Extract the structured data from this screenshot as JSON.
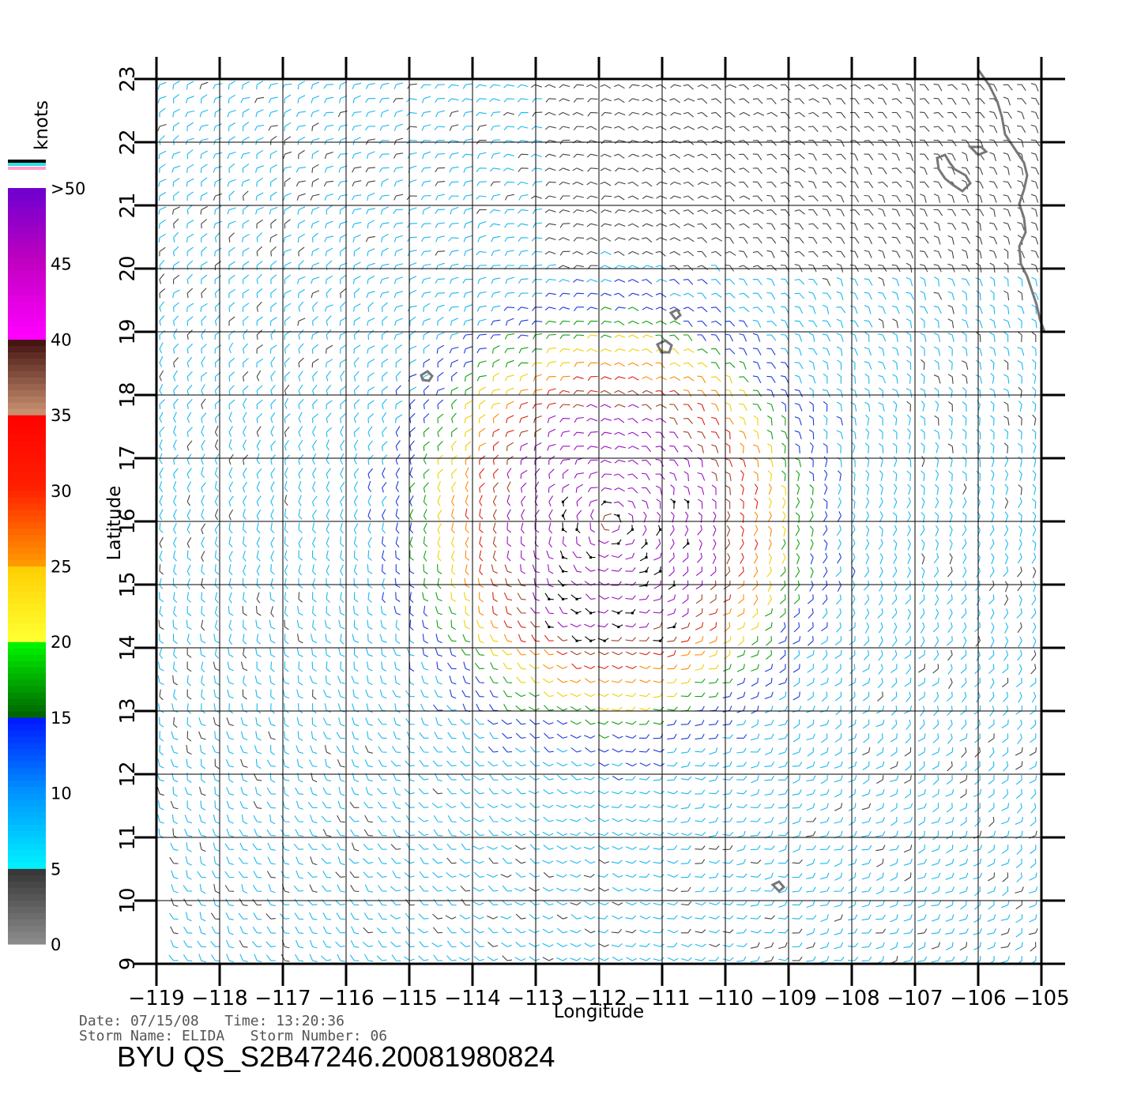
{
  "chart_data": {
    "type": "map",
    "product": "QuikSCAT wind barbs",
    "xlabel": "Longitude",
    "ylabel": "Latitude",
    "xlim": [
      -119,
      -105
    ],
    "ylim": [
      9,
      23
    ],
    "x_ticks": [
      "−119",
      "−118",
      "−117",
      "−116",
      "−115",
      "−114",
      "−113",
      "−112",
      "−111",
      "−110",
      "−109",
      "−108",
      "−107",
      "−106",
      "−105"
    ],
    "y_ticks": [
      "9",
      "10",
      "11",
      "12",
      "13",
      "14",
      "15",
      "16",
      "17",
      "18",
      "19",
      "20",
      "21",
      "22",
      "23"
    ],
    "grid": true,
    "storm_center": {
      "lon": -111.8,
      "lat": 16.0
    },
    "rain_flag_region": {
      "lon_range": [
        -113,
        -110.5
      ],
      "lat_range": [
        14,
        16.5
      ]
    },
    "legend": {
      "title": "knots",
      "placement": "left",
      "labels": [
        "0",
        "5",
        "10",
        "15",
        "20",
        "25",
        "30",
        "35",
        "40",
        "45",
        ">50"
      ],
      "colors": [
        "#808080",
        "#3a3a3a",
        "#00eeff",
        "#0080ff",
        "#0000ff",
        "#007700",
        "#00ff00",
        "#ffff33",
        "#ffcc00",
        "#ff8800",
        "#ff3300",
        "#ff0000",
        "#c08060",
        "#803020",
        "#401010",
        "#ff00ff",
        "#cc00cc",
        "#6600cc"
      ]
    }
  },
  "info": {
    "date_line": "Date: 07/15/08   Time: 13:20:36",
    "storm_line": "Storm Name: ELIDA   Storm Number: 06",
    "product_id": "BYU QS_S2B47246.20081980824"
  }
}
